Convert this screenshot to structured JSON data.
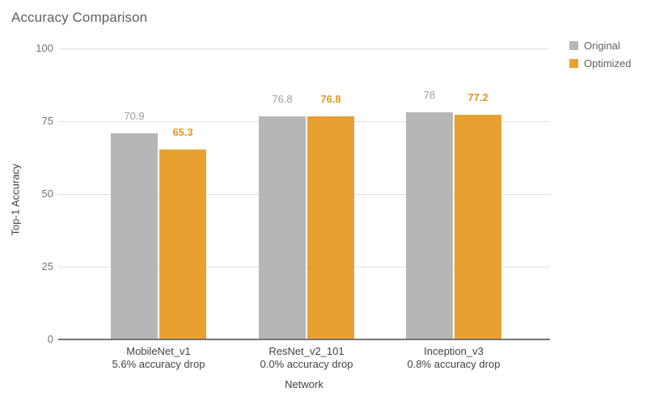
{
  "title": "Accuracy Comparison",
  "colors": {
    "original_bar": "#B6B6B6",
    "optimized_bar": "#E8A030",
    "original_label": "#9E9E9E",
    "optimized_label": "#E8961C",
    "gridline": "#E0E0E0",
    "axis_baseline": "#757575"
  },
  "legend": {
    "position": "right",
    "items": [
      {
        "label": "Original",
        "color": "#B6B6B6"
      },
      {
        "label": "Optimized",
        "color": "#E8A030"
      }
    ]
  },
  "chart_data": {
    "type": "bar",
    "title": "Accuracy Comparison",
    "xlabel": "Network",
    "ylabel": "Top-1 Accuracy",
    "ylim": [
      0,
      100
    ],
    "yticks": [
      "0",
      "25",
      "50",
      "75",
      "100"
    ],
    "grid": true,
    "legend_position": "right",
    "categories": [
      {
        "name": "MobileNet_v1",
        "subtitle": "5.6% accuracy drop"
      },
      {
        "name": "ResNet_v2_101",
        "subtitle": "0.0% accuracy drop"
      },
      {
        "name": "Inception_v3",
        "subtitle": "0.8% accuracy drop"
      }
    ],
    "series": [
      {
        "name": "Original",
        "color": "#B6B6B6",
        "label_color": "#9E9E9E",
        "values": [
          70.9,
          76.8,
          78
        ],
        "labels": [
          "70.9",
          "76.8",
          "78"
        ]
      },
      {
        "name": "Optimized",
        "color": "#E8A030",
        "label_color": "#E8961C",
        "values": [
          65.3,
          76.8,
          77.2
        ],
        "labels": [
          "65.3",
          "76.8",
          "77.2"
        ]
      }
    ]
  }
}
